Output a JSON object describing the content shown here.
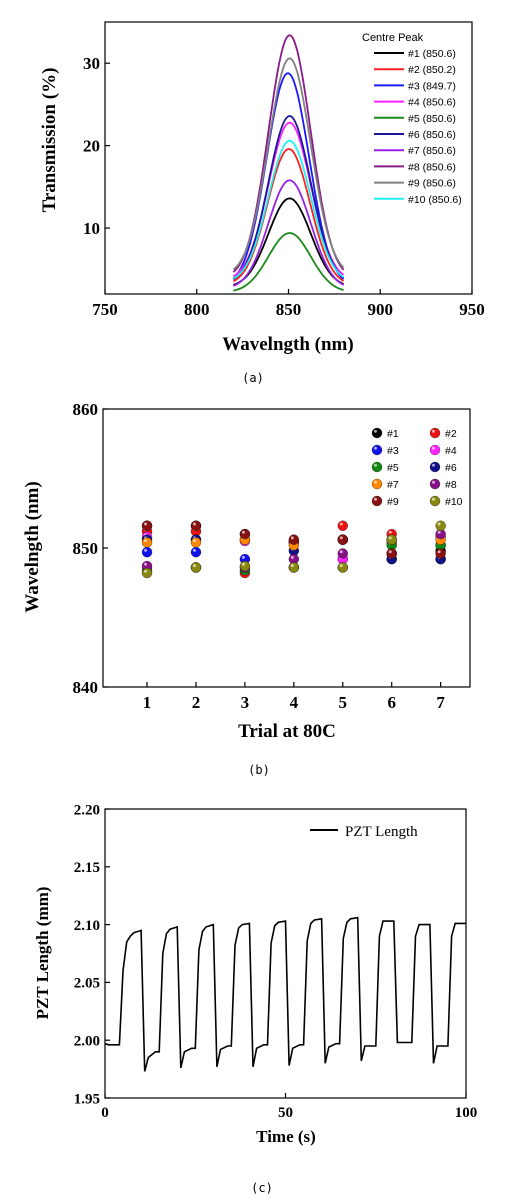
{
  "chart_data": [
    {
      "id": "a",
      "type": "line",
      "caption": "(a)",
      "xlabel": "Wavelngth (nm)",
      "ylabel": "Transmission (%)",
      "xlim": [
        750,
        950
      ],
      "ylim": [
        2,
        35
      ],
      "xticks": [
        750,
        800,
        850,
        900,
        950
      ],
      "yticks": [
        10,
        20,
        30
      ],
      "legend_title": "Centre Peak",
      "legend_position": "top-right",
      "series": [
        {
          "name": "#1 (850.6)",
          "color": "#000000",
          "center": 850.6,
          "peak": 13.6,
          "base": 2.8
        },
        {
          "name": "#2 (850.2)",
          "color": "#ff2020",
          "center": 850.2,
          "peak": 19.6,
          "base": 3.0
        },
        {
          "name": "#3 (849.7)",
          "color": "#1a1aff",
          "center": 849.7,
          "peak": 28.8,
          "base": 3.0
        },
        {
          "name": "#4 (850.6)",
          "color": "#ff20ff",
          "center": 850.6,
          "peak": 22.8,
          "base": 3.6
        },
        {
          "name": "#5 (850.6)",
          "color": "#1a8a1a",
          "center": 850.6,
          "peak": 9.4,
          "base": 2.2
        },
        {
          "name": "#6 (850.6)",
          "color": "#1a1a99",
          "center": 850.6,
          "peak": 23.6,
          "base": 3.2
        },
        {
          "name": "#7 (850.6)",
          "color": "#9a20e8",
          "center": 850.6,
          "peak": 15.8,
          "base": 2.6
        },
        {
          "name": "#8 (850.6)",
          "color": "#8a1a8a",
          "center": 850.6,
          "peak": 33.4,
          "base": 3.8
        },
        {
          "name": "#9 (850.6)",
          "color": "#808080",
          "center": 850.6,
          "peak": 30.6,
          "base": 4.2
        },
        {
          "name": "#10 (850.6)",
          "color": "#20f0f0",
          "center": 850.6,
          "peak": 20.6,
          "base": 3.4
        }
      ],
      "x_start": 820,
      "x_end": 880
    },
    {
      "id": "b",
      "type": "scatter",
      "caption": "(b)",
      "xlabel": "Trial at 80C",
      "ylabel": "Wavelngth (nm)",
      "xlim": [
        0.1,
        7.6
      ],
      "ylim": [
        840,
        860
      ],
      "xticks": [
        1,
        2,
        3,
        4,
        5,
        6,
        7
      ],
      "yticks": [
        840,
        850,
        860
      ],
      "legend_position": "top-right",
      "series": [
        {
          "name": "#1",
          "color": "#000000",
          "values": [
            851.6,
            851.6,
            851.0,
            850.4,
            850.6,
            849.6,
            849.8
          ]
        },
        {
          "name": "#2",
          "color": "#ee1111",
          "values": [
            851.2,
            851.2,
            848.2,
            850.4,
            851.6,
            851.0,
            850.2
          ]
        },
        {
          "name": "#3",
          "color": "#1111ee",
          "values": [
            849.7,
            849.7,
            849.2,
            848.6,
            849.2,
            849.2,
            849.2
          ]
        },
        {
          "name": "#4",
          "color": "#ff22ff",
          "values": [
            850.8,
            850.6,
            850.5,
            850.5,
            849.2,
            850.4,
            850.8
          ]
        },
        {
          "name": "#5",
          "color": "#118811",
          "values": [
            848.4,
            848.6,
            848.4,
            848.6,
            848.6,
            850.2,
            850.2
          ]
        },
        {
          "name": "#6",
          "color": "#111188",
          "values": [
            850.6,
            850.6,
            850.6,
            849.8,
            850.6,
            849.2,
            849.2
          ]
        },
        {
          "name": "#7",
          "color": "#ff8800",
          "values": [
            850.4,
            850.4,
            850.6,
            850.2,
            850.6,
            850.6,
            850.6
          ]
        },
        {
          "name": "#8",
          "color": "#881188",
          "values": [
            848.7,
            848.6,
            848.6,
            849.2,
            849.6,
            849.6,
            851.0
          ]
        },
        {
          "name": "#9",
          "color": "#881111",
          "values": [
            851.6,
            851.6,
            851.0,
            850.6,
            850.6,
            849.6,
            849.6
          ]
        },
        {
          "name": "#10",
          "color": "#888811",
          "values": [
            848.2,
            848.6,
            848.7,
            848.6,
            848.6,
            850.6,
            851.6
          ]
        }
      ]
    },
    {
      "id": "c",
      "type": "line",
      "caption": "(c)",
      "xlabel": "Time (s)",
      "ylabel": "PZT Length (mm)",
      "xlim": [
        0,
        100
      ],
      "ylim": [
        1.95,
        2.2
      ],
      "xticks": [
        0,
        50,
        100
      ],
      "yticks": [
        1.95,
        2.0,
        2.05,
        2.1,
        2.15,
        2.2
      ],
      "legend_position": "top-right",
      "series": [
        {
          "name": "PZT Length",
          "color": "#000000",
          "x": [
            0,
            1,
            4,
            5,
            6,
            7,
            8,
            10,
            11,
            12,
            14,
            15,
            16,
            17,
            18,
            20,
            21,
            22,
            24,
            25,
            26,
            27,
            28,
            30,
            31,
            32,
            34,
            35,
            36,
            37,
            38,
            40,
            41,
            42,
            44,
            45,
            46,
            47,
            48,
            50,
            51,
            52,
            54,
            55,
            56,
            57,
            58,
            60,
            61,
            62,
            64,
            65,
            66,
            67,
            68,
            70,
            71,
            72,
            74,
            75,
            76,
            77,
            78,
            80,
            81,
            82,
            85,
            86,
            87,
            88,
            90,
            91,
            92,
            95,
            96,
            97,
            98,
            100
          ],
          "values": [
            1.997,
            1.996,
            1.996,
            2.06,
            2.085,
            2.09,
            2.093,
            2.095,
            1.973,
            1.985,
            1.99,
            1.99,
            2.075,
            2.092,
            2.096,
            2.098,
            1.976,
            1.99,
            1.993,
            1.993,
            2.078,
            2.094,
            2.098,
            2.1,
            1.977,
            1.992,
            1.995,
            1.995,
            2.082,
            2.097,
            2.1,
            2.101,
            1.977,
            1.993,
            1.996,
            1.996,
            2.084,
            2.099,
            2.102,
            2.103,
            1.978,
            1.993,
            1.996,
            1.996,
            2.086,
            2.101,
            2.104,
            2.105,
            1.98,
            1.994,
            1.997,
            1.997,
            2.088,
            2.102,
            2.105,
            2.106,
            1.982,
            1.995,
            1.995,
            1.995,
            2.09,
            2.103,
            2.103,
            2.103,
            1.998,
            1.998,
            1.998,
            2.09,
            2.1,
            2.1,
            2.1,
            1.98,
            1.995,
            1.995,
            2.09,
            2.101,
            2.101,
            2.101
          ]
        }
      ]
    }
  ]
}
